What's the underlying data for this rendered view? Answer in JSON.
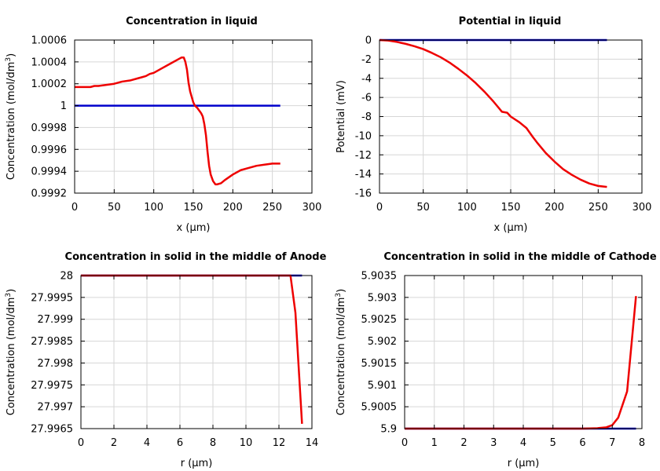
{
  "chart_data": [
    {
      "type": "line",
      "title": "Concentration in liquid",
      "xlabel": "x (µm)",
      "ylabel": "Concentration (mol/dm³)",
      "xlim": [
        0,
        300
      ],
      "ylim": [
        0.9992,
        1.0006
      ],
      "xticks": [
        0,
        50,
        100,
        150,
        200,
        250,
        300
      ],
      "xtick_labels": [
        "0",
        "50",
        "100",
        "150",
        "200",
        "250",
        "300"
      ],
      "yticks": [
        0.9992,
        0.9994,
        0.9996,
        0.9998,
        1.0,
        1.0002,
        1.0004,
        1.0006
      ],
      "ytick_labels": [
        "0.9992",
        "0.9994",
        "0.9996",
        "0.9998",
        "1",
        "1.0002",
        "1.0004",
        "1.0006"
      ],
      "series": [
        {
          "color": "#0000cc",
          "x": [
            0,
            260
          ],
          "y": [
            1.0,
            1.0
          ]
        },
        {
          "color": "#ee0000",
          "x": [
            0,
            10,
            20,
            25,
            30,
            40,
            50,
            55,
            60,
            70,
            80,
            85,
            90,
            95,
            100,
            110,
            120,
            130,
            135,
            138,
            140,
            142,
            144,
            146,
            148,
            150,
            152,
            155,
            158,
            160,
            162,
            164,
            166,
            168,
            170,
            172,
            175,
            178,
            180,
            185,
            190,
            200,
            210,
            220,
            230,
            240,
            250,
            260
          ],
          "y": [
            1.00017,
            1.00017,
            1.00017,
            1.00018,
            1.00018,
            1.00019,
            1.0002,
            1.00021,
            1.00022,
            1.00023,
            1.00025,
            1.00026,
            1.00027,
            1.00029,
            1.0003,
            1.00034,
            1.00038,
            1.00042,
            1.00044,
            1.00044,
            1.0004,
            1.00033,
            1.00021,
            1.00013,
            1.00008,
            1.00003,
            1.0,
            0.99998,
            0.99995,
            0.99993,
            0.9999,
            0.99983,
            0.99973,
            0.99958,
            0.99945,
            0.99937,
            0.99931,
            0.99928,
            0.99928,
            0.99929,
            0.99932,
            0.99937,
            0.99941,
            0.99943,
            0.99945,
            0.99946,
            0.99947,
            0.99947
          ]
        }
      ]
    },
    {
      "type": "line",
      "title": "Potential in liquid",
      "xlabel": "x (µm)",
      "ylabel": "Potential (mV)",
      "xlim": [
        0,
        300
      ],
      "ylim": [
        -16,
        0
      ],
      "xticks": [
        0,
        50,
        100,
        150,
        200,
        250,
        300
      ],
      "xtick_labels": [
        "0",
        "50",
        "100",
        "150",
        "200",
        "250",
        "300"
      ],
      "yticks": [
        -16,
        -14,
        -12,
        -10,
        -8,
        -6,
        -4,
        -2,
        0
      ],
      "ytick_labels": [
        "-16",
        "-14",
        "-12",
        "-10",
        "-8",
        "-6",
        "-4",
        "-2",
        "0"
      ],
      "series": [
        {
          "color": "#0000cc",
          "x": [
            0,
            260
          ],
          "y": [
            0,
            0
          ]
        },
        {
          "color": "#ee0000",
          "x": [
            0,
            10,
            20,
            30,
            40,
            50,
            60,
            70,
            80,
            90,
            100,
            110,
            120,
            130,
            140,
            146,
            150,
            160,
            168,
            175,
            180,
            190,
            200,
            210,
            220,
            230,
            240,
            250,
            260
          ],
          "y": [
            0,
            -0.05,
            -0.2,
            -0.4,
            -0.65,
            -0.95,
            -1.35,
            -1.8,
            -2.35,
            -3.0,
            -3.7,
            -4.5,
            -5.4,
            -6.4,
            -7.5,
            -7.6,
            -8.0,
            -8.6,
            -9.2,
            -10.1,
            -10.7,
            -11.8,
            -12.7,
            -13.5,
            -14.1,
            -14.6,
            -15.0,
            -15.25,
            -15.35
          ]
        }
      ]
    },
    {
      "type": "line",
      "title": "Concentration in solid in the middle of Anode",
      "xlabel": "r (µm)",
      "ylabel": "Concentration (mol/dm³)",
      "xlim": [
        0,
        14
      ],
      "ylim": [
        27.9965,
        28.0
      ],
      "xticks": [
        0,
        2,
        4,
        6,
        8,
        10,
        12,
        14
      ],
      "xtick_labels": [
        "0",
        "2",
        "4",
        "6",
        "8",
        "10",
        "12",
        "14"
      ],
      "yticks": [
        27.9965,
        27.997,
        27.9975,
        27.998,
        27.9985,
        27.999,
        27.9995,
        28.0
      ],
      "ytick_labels": [
        "27.9965",
        "27.997",
        "27.9975",
        "27.998",
        "27.9985",
        "27.999",
        "27.9995",
        "28"
      ],
      "series": [
        {
          "color": "#0000cc",
          "x": [
            0,
            13.4
          ],
          "y": [
            28.0,
            28.0
          ]
        },
        {
          "color": "#ee0000",
          "x": [
            0,
            12,
            12.7,
            13.0,
            13.4
          ],
          "y": [
            28.0,
            28.0,
            28.0,
            27.99915,
            27.99661
          ]
        }
      ]
    },
    {
      "type": "line",
      "title": "Concentration in solid in the middle of Cathode",
      "xlabel": "r (µm)",
      "ylabel": "Concentration (mol/dm³)",
      "xlim": [
        0,
        8
      ],
      "ylim": [
        5.9,
        5.9035
      ],
      "xticks": [
        0,
        1,
        2,
        3,
        4,
        5,
        6,
        7,
        8
      ],
      "xtick_labels": [
        "0",
        "1",
        "2",
        "3",
        "4",
        "5",
        "6",
        "7",
        "8"
      ],
      "yticks": [
        5.9,
        5.9005,
        5.901,
        5.9015,
        5.902,
        5.9025,
        5.903,
        5.9035
      ],
      "ytick_labels": [
        "5.9",
        "5.9005",
        "5.901",
        "5.9015",
        "5.902",
        "5.9025",
        "5.903",
        "5.9035"
      ],
      "series": [
        {
          "color": "#0000cc",
          "x": [
            0,
            7.8
          ],
          "y": [
            5.9,
            5.9
          ]
        },
        {
          "color": "#ee0000",
          "x": [
            0,
            6,
            6.5,
            6.8,
            7.0,
            7.2,
            7.5,
            7.8
          ],
          "y": [
            5.9,
            5.9,
            5.90001,
            5.90003,
            5.90008,
            5.90025,
            5.90085,
            5.90303
          ]
        }
      ]
    }
  ]
}
